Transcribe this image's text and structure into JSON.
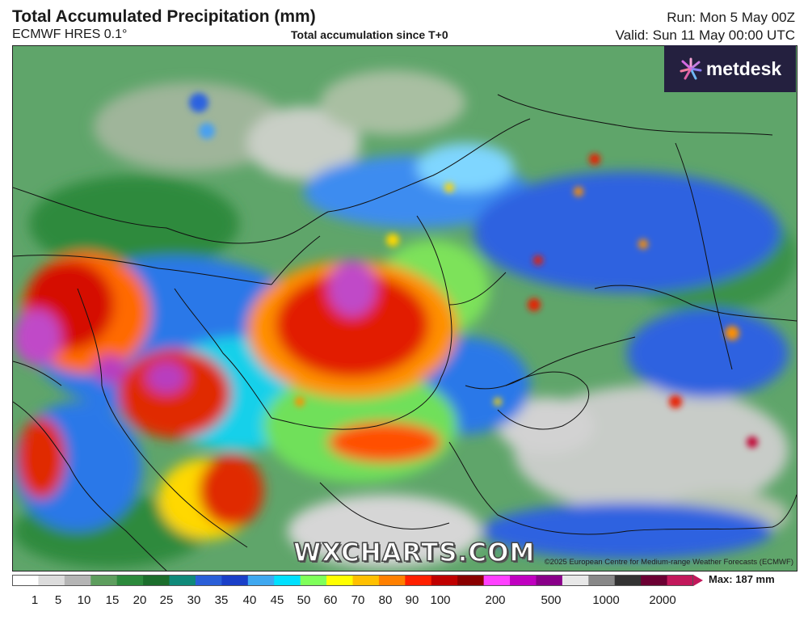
{
  "header": {
    "title": "Total Accumulated Precipitation (mm)",
    "model": "ECMWF HRES 0.1°",
    "subtitle": "Total accumulation since T+0",
    "run": "Run: Mon 5 May 00Z",
    "valid": "Valid: Sun 11 May 00:00 UTC"
  },
  "logo": {
    "text": "metdesk"
  },
  "watermark": {
    "text": "WXCHARTS.COM"
  },
  "copyright": "©2025 European Centre for Medium-range Weather Forecasts (ECMWF)",
  "legend": {
    "max_label": "Max: 187 mm",
    "ticks": [
      "1",
      "5",
      "10",
      "15",
      "20",
      "25",
      "30",
      "35",
      "40",
      "45",
      "50",
      "60",
      "70",
      "80",
      "90",
      "100",
      "200",
      "500",
      "1000",
      "2000"
    ],
    "colors": [
      "#ffffff",
      "#dcdcdc",
      "#b5b5b5",
      "#5e9e5e",
      "#2c8a3c",
      "#1c6e2c",
      "#0f8a7a",
      "#2a5fd8",
      "#1a3fc8",
      "#3fa8f0",
      "#00e0ff",
      "#7fff5a",
      "#ffff00",
      "#ffc000",
      "#ff8000",
      "#ff2000",
      "#c00000",
      "#8a0000",
      "#ff40ff",
      "#c000c0",
      "#8a008a",
      "#e8e8e8",
      "#888888",
      "#333333",
      "#6b0033",
      "#c2185b"
    ]
  },
  "colors": {
    "logo_bg": "#24203f",
    "heavy": "#d10000",
    "extreme": "#c042c8",
    "moderate": "#2560e0"
  }
}
